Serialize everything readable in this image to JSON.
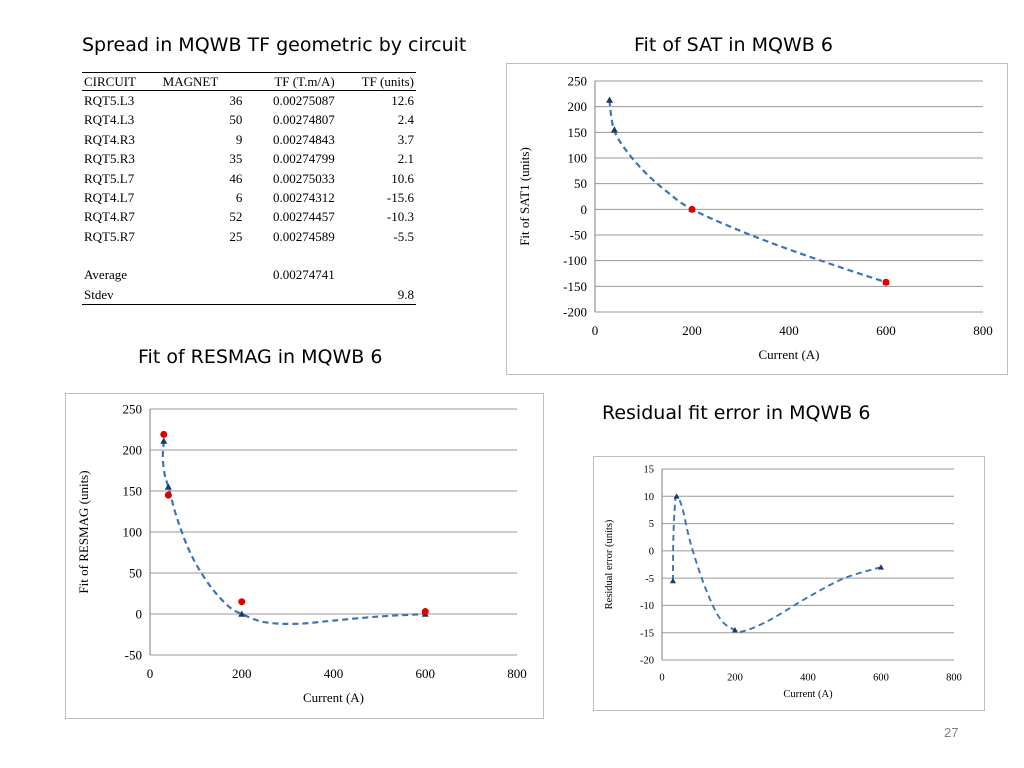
{
  "slide": {
    "page_number": "27"
  },
  "titles": {
    "table": "Spread in MQWB TF geometric by circuit",
    "sat": "Fit of SAT in MQWB 6",
    "resmag": "Fit of RESMAG in MQWB 6",
    "residual": "Residual fit error in MQWB 6"
  },
  "table": {
    "headers": [
      "CIRCUIT",
      "MAGNET",
      "TF (T.m/A)",
      "TF (units)"
    ],
    "rows": [
      [
        "RQT5.L3",
        "36",
        "0.00275087",
        "12.6"
      ],
      [
        "RQT4.L3",
        "50",
        "0.00274807",
        "2.4"
      ],
      [
        "RQT4.R3",
        "9",
        "0.00274843",
        "3.7"
      ],
      [
        "RQT5.R3",
        "35",
        "0.00274799",
        "2.1"
      ],
      [
        "RQT5.L7",
        "46",
        "0.00275033",
        "10.6"
      ],
      [
        "RQT4.L7",
        "6",
        "0.00274312",
        "-15.6"
      ],
      [
        "RQT4.R7",
        "52",
        "0.00274457",
        "-10.3"
      ],
      [
        "RQT5.R7",
        "25",
        "0.00274589",
        "-5.5"
      ]
    ],
    "summary": [
      [
        "Average",
        "",
        "0.00274741",
        ""
      ],
      [
        "Stdev",
        "",
        "",
        "9.8"
      ]
    ]
  },
  "chart_data": [
    {
      "id": "sat",
      "type": "scatter",
      "xlabel": "Current (A)",
      "ylabel": "Fit of SAT1 (units)",
      "xlim": [
        0,
        800
      ],
      "ylim": [
        -200,
        250
      ],
      "xticks": [
        0,
        200,
        400,
        600,
        800
      ],
      "yticks": [
        -200,
        -150,
        -100,
        -50,
        0,
        50,
        100,
        150,
        200,
        250
      ],
      "grid": true,
      "series": [
        {
          "kind": "curve",
          "color": "#3b74b8",
          "x": [
            30,
            33,
            40,
            60,
            100,
            150,
            200,
            300,
            400,
            500,
            600
          ],
          "y": [
            213,
            185,
            153,
            120,
            75,
            33,
            0,
            -42,
            -78,
            -111,
            -142
          ]
        },
        {
          "kind": "triangle-markers",
          "color": "#1f3864",
          "x": [
            30,
            40,
            200,
            600
          ],
          "y": [
            213,
            155,
            0,
            -142
          ]
        },
        {
          "kind": "circle-markers",
          "color": "#e00000",
          "x": [
            200,
            600
          ],
          "y": [
            0,
            -142
          ]
        }
      ]
    },
    {
      "id": "resmag",
      "type": "scatter",
      "xlabel": "Current (A)",
      "ylabel": "Fit of RESMAG (units)",
      "xlim": [
        0,
        800
      ],
      "ylim": [
        -50,
        250
      ],
      "xticks": [
        0,
        200,
        400,
        600,
        800
      ],
      "yticks": [
        -50,
        0,
        50,
        100,
        150,
        200,
        250
      ],
      "grid": true,
      "series": [
        {
          "kind": "curve",
          "color": "#3b74b8",
          "x": [
            30,
            28,
            32,
            40,
            60,
            90,
            130,
            170,
            200,
            250,
            320,
            400,
            500,
            600
          ],
          "y": [
            211,
            190,
            170,
            155,
            115,
            72,
            35,
            10,
            0,
            -10,
            -12,
            -8,
            -3,
            0
          ]
        },
        {
          "kind": "triangle-markers",
          "color": "#1f3864",
          "x": [
            30,
            40,
            200,
            600
          ],
          "y": [
            211,
            155,
            0,
            0
          ]
        },
        {
          "kind": "circle-markers",
          "color": "#e00000",
          "x": [
            30,
            40,
            200,
            600
          ],
          "y": [
            219,
            145,
            15,
            3
          ]
        }
      ]
    },
    {
      "id": "residual",
      "type": "scatter",
      "xlabel": "Current (A)",
      "ylabel": "Residual error (units)",
      "xlim": [
        0,
        800
      ],
      "ylim": [
        -20,
        15
      ],
      "xticks": [
        0,
        200,
        400,
        600,
        800
      ],
      "yticks": [
        -20,
        -15,
        -10,
        -5,
        0,
        5,
        10,
        15
      ],
      "grid": true,
      "series": [
        {
          "kind": "curve",
          "color": "#3b74b8",
          "x": [
            30,
            31,
            35,
            40,
            55,
            80,
            120,
            160,
            200,
            230,
            300,
            400,
            500,
            600
          ],
          "y": [
            -5.5,
            2,
            8,
            10,
            8,
            1,
            -7,
            -12.5,
            -14.5,
            -14.6,
            -12.5,
            -8.5,
            -5,
            -3
          ]
        },
        {
          "kind": "triangle-markers",
          "color": "#1f3864",
          "x": [
            30,
            40,
            200,
            600
          ],
          "y": [
            -5.5,
            10,
            -14.5,
            -3
          ]
        }
      ]
    }
  ]
}
